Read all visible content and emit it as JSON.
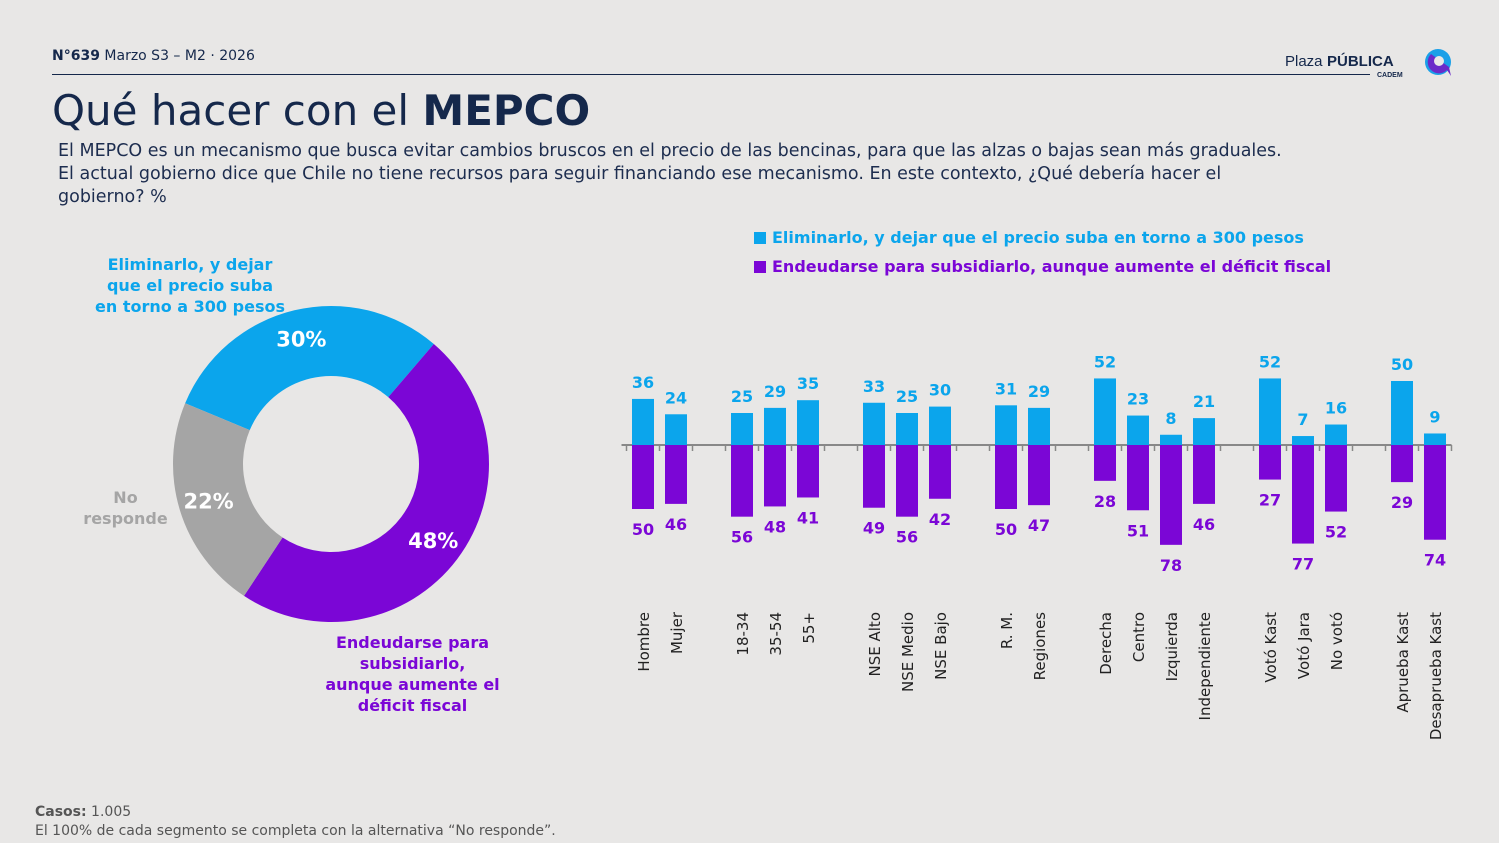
{
  "header": {
    "issue_number": "N°639",
    "issue_period": "Marzo S3 – M2 · 2026",
    "logo_text": "Plaza PÚBLICA CADEM"
  },
  "title": {
    "prefix": "Qué hacer con el ",
    "bold": "MEPCO"
  },
  "description": "El MEPCO es un mecanismo que busca evitar cambios bruscos en el precio de las bencinas, para que las alzas o bajas sean más graduales. El actual gobierno dice que Chile no tiene recursos para seguir financiando ese mecanismo. En este contexto, ¿Qué debería hacer el gobierno? %",
  "colors": {
    "eliminar": "#0ba5ec",
    "endeudarse": "#7b06d6",
    "no_responde": "#a5a5a5",
    "navy": "#15284b",
    "axis": "#888888"
  },
  "chart_data": [
    {
      "type": "pie",
      "donut": true,
      "slices": [
        {
          "label": "Eliminarlo, y dejar que el precio suba en torno a 300 pesos",
          "value": 30,
          "value_label": "30%"
        },
        {
          "label": "Endeudarse para subsidiarlo, aunque aumente el déficit fiscal",
          "value": 48,
          "value_label": "48%"
        },
        {
          "label": "No responde",
          "value": 22,
          "value_label": "22%"
        }
      ]
    },
    {
      "type": "bar",
      "diverging": true,
      "legend": [
        "Eliminarlo, y dejar que el precio suba en torno a 300 pesos",
        "Endeudarse para subsidiarlo, aunque aumente el déficit fiscal"
      ],
      "legend_placement": "top",
      "groups": [
        {
          "categories": [
            "Hombre",
            "Mujer"
          ]
        },
        {
          "categories": [
            "18-34",
            "35-54",
            "55+"
          ]
        },
        {
          "categories": [
            "NSE Alto",
            "NSE Medio",
            "NSE Bajo"
          ]
        },
        {
          "categories": [
            "R. M.",
            "Regiones"
          ]
        },
        {
          "categories": [
            "Derecha",
            "Centro",
            "Izquierda",
            "Independiente"
          ]
        },
        {
          "categories": [
            "Votó Kast",
            "Votó Jara",
            "No votó"
          ]
        },
        {
          "categories": [
            "Aprueba Kast",
            "Desaprueba Kast"
          ]
        }
      ],
      "series": [
        {
          "name": "Eliminarlo, y dejar que el precio suba en torno a 300 pesos",
          "direction": "up",
          "values": [
            36,
            24,
            25,
            29,
            35,
            33,
            25,
            30,
            31,
            29,
            52,
            23,
            8,
            21,
            52,
            7,
            16,
            50,
            9
          ]
        },
        {
          "name": "Endeudarse para subsidiarlo, aunque aumente el déficit fiscal",
          "direction": "down",
          "values": [
            50,
            46,
            56,
            48,
            41,
            49,
            56,
            42,
            50,
            47,
            28,
            51,
            78,
            46,
            27,
            77,
            52,
            29,
            74
          ]
        }
      ]
    }
  ],
  "footer": {
    "cases_label": "Casos:",
    "cases_value": " 1.005",
    "note": "El 100% de cada segmento se completa con la alternativa “No responde”."
  }
}
